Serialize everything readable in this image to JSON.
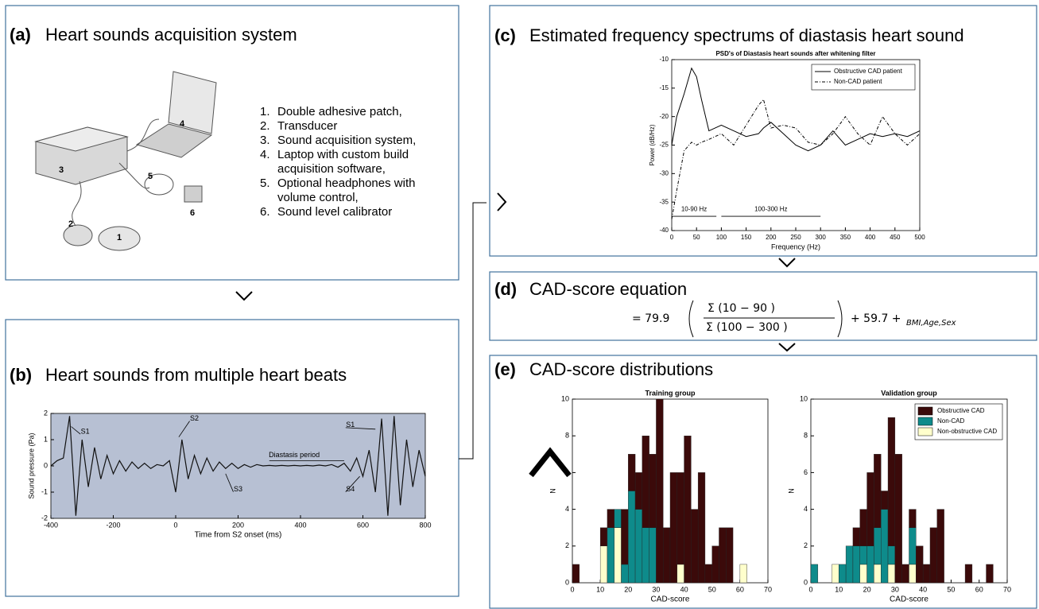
{
  "panels": {
    "a": {
      "label": "(a)",
      "title": "Heart sounds acquisition system",
      "items": [
        {
          "number": "1.",
          "text": "Double adhesive patch,"
        },
        {
          "number": "2.",
          "text": "Transducer"
        },
        {
          "number": "3.",
          "text": "Sound acquisition system,"
        },
        {
          "number": "4.",
          "text": "Laptop with custom build acquisition software,"
        },
        {
          "number": "5.",
          "text": "Optional headphones with volume control,"
        },
        {
          "number": "6.",
          "text": "Sound level calibrator"
        }
      ],
      "callouts": [
        "1",
        "2",
        "3",
        "4",
        "5",
        "6"
      ]
    },
    "b": {
      "label": "(b)",
      "title": "Heart sounds from multiple heart beats"
    },
    "c": {
      "label": "(c)",
      "title": "Estimated frequency spectrums of diastasis heart sound"
    },
    "d": {
      "label": "(d)",
      "title": "CAD-score equation",
      "equation": {
        "lhs": "= 79.9",
        "numerator": "Σ       (10 − 90     )",
        "denominator": "Σ      (100 − 300      )",
        "rhs": "+  59.7 +",
        "subscript": "BMI,Age,Sex"
      }
    },
    "e": {
      "label": "(e)",
      "title": "CAD-score distributions"
    }
  },
  "chart_data": [
    {
      "type": "line",
      "xlabel": "Time from S2 onset (ms)",
      "ylabel": "Sound pressure (Pa)",
      "background": "#b7c0d3",
      "x": [
        -400,
        -380,
        -360,
        -340,
        -320,
        -300,
        -280,
        -260,
        -240,
        -220,
        -200,
        -180,
        -160,
        -140,
        -120,
        -100,
        -80,
        -60,
        -40,
        -20,
        0,
        20,
        40,
        60,
        80,
        100,
        120,
        140,
        160,
        180,
        200,
        220,
        240,
        260,
        280,
        300,
        320,
        340,
        360,
        380,
        400,
        420,
        440,
        460,
        480,
        500,
        520,
        540,
        560,
        580,
        600,
        620,
        640,
        660,
        680,
        700,
        720,
        740,
        760,
        780,
        800
      ],
      "series": [
        {
          "color": "#111111",
          "values": [
            0,
            0.2,
            0.3,
            1.9,
            -1.9,
            1.0,
            -0.8,
            0.7,
            -0.5,
            0.4,
            -0.3,
            0.2,
            -0.2,
            0.15,
            -0.1,
            0.1,
            -0.1,
            0.05,
            0,
            0.2,
            -1.0,
            1.0,
            -0.5,
            0.4,
            -0.3,
            0.3,
            -0.2,
            0.15,
            -0.1,
            0.1,
            -0.1,
            0.05,
            -0.05,
            0.05,
            0,
            0.02,
            0,
            0.02,
            0,
            0.02,
            0,
            0.02,
            0,
            0.03,
            0,
            0.05,
            -0.05,
            0.1,
            -0.2,
            0.3,
            -0.4,
            0.6,
            -1.0,
            1.8,
            -1.9,
            1.9,
            -1.5,
            1.0,
            -0.8,
            0.6,
            -0.4
          ]
        }
      ],
      "xlim": [
        -400,
        800
      ],
      "xticks": [
        -400,
        -200,
        0,
        200,
        400,
        600,
        800
      ],
      "ylim": [
        -2,
        2
      ],
      "yticks": [
        -2,
        -1,
        0,
        1,
        2
      ],
      "annotations": [
        "S1",
        "S2",
        "S3",
        "Diastasis period",
        "S4",
        "S1"
      ]
    },
    {
      "type": "line",
      "title": "PSD's of Diastasis heart sounds after whitening filter",
      "xlabel": "Frequency (Hz)",
      "ylabel": "Power (dB/Hz)",
      "legend": "upper right",
      "x": [
        0,
        10,
        25,
        40,
        50,
        60,
        75,
        100,
        125,
        150,
        175,
        185,
        200,
        225,
        250,
        275,
        300,
        325,
        350,
        375,
        400,
        425,
        450,
        475,
        500
      ],
      "series": [
        {
          "name": "Obstructive CAD patient",
          "color": "#000000",
          "style": "solid",
          "values": [
            -25,
            -20,
            -16,
            -11.5,
            -13,
            -17,
            -22.5,
            -21.5,
            -22.5,
            -23.5,
            -23,
            -22,
            -21,
            -23,
            -25,
            -26,
            -25,
            -22.5,
            -25,
            -24,
            -23,
            -23.5,
            -23,
            -23.5,
            -22.5
          ]
        },
        {
          "name": "Non-CAD patient",
          "color": "#000000",
          "style": "dashdot",
          "values": [
            -38,
            -33,
            -26,
            -24.5,
            -25,
            -24.5,
            -24,
            -23,
            -25,
            -21.5,
            -18,
            -17,
            -22,
            -21.5,
            -22,
            -24.5,
            -25,
            -23,
            -20,
            -23,
            -25,
            -20,
            -23,
            -25,
            -23
          ]
        }
      ],
      "xlim": [
        0,
        500
      ],
      "xticks": [
        0,
        50,
        100,
        150,
        200,
        250,
        300,
        350,
        400,
        450,
        500
      ],
      "ylim": [
        -40,
        -10
      ],
      "yticks": [
        -40,
        -35,
        -30,
        -25,
        -20,
        -15,
        -10
      ],
      "annotations": [
        "10-90 Hz",
        "100-300 Hz"
      ]
    },
    {
      "type": "histogram",
      "title": "Training group",
      "xlabel": "CAD-score",
      "ylabel": "N",
      "bins": [
        0,
        2.5,
        5,
        7.5,
        10,
        12.5,
        15,
        17.5,
        20,
        22.5,
        25,
        27.5,
        30,
        32.5,
        35,
        37.5,
        40,
        42.5,
        45,
        47.5,
        50,
        52.5,
        55,
        57.5,
        60,
        62.5,
        65,
        67.5,
        70
      ],
      "series": [
        {
          "color": "#3b0a0a",
          "values": [
            1,
            0,
            0,
            0,
            1,
            1,
            0,
            3,
            2,
            2,
            5,
            4,
            10,
            3,
            6,
            5,
            8,
            4,
            6,
            1,
            2,
            3,
            3,
            0,
            0,
            0,
            0,
            0
          ]
        },
        {
          "color": "#0e8b8b",
          "values": [
            0,
            0,
            0,
            0,
            0,
            3,
            1,
            1,
            5,
            4,
            3,
            3,
            0,
            0,
            0,
            0,
            0,
            0,
            0,
            0,
            0,
            0,
            0,
            0,
            0,
            0,
            0,
            0
          ]
        },
        {
          "color": "#ffffcc",
          "values": [
            0,
            0,
            0,
            0,
            2,
            0,
            3,
            0,
            0,
            0,
            0,
            0,
            0,
            0,
            0,
            1,
            0,
            0,
            0,
            0,
            0,
            0,
            0,
            0,
            1,
            0,
            0,
            0
          ]
        }
      ],
      "xlim": [
        0,
        70
      ],
      "xticks": [
        0,
        10,
        20,
        30,
        40,
        50,
        60,
        70
      ],
      "ylim": [
        0,
        10
      ],
      "yticks": [
        0,
        2,
        4,
        6,
        8,
        10
      ]
    },
    {
      "type": "histogram",
      "title": "Validation group",
      "xlabel": "CAD-score",
      "ylabel": "N",
      "legend": "upper right",
      "bins": [
        0,
        2.5,
        5,
        7.5,
        10,
        12.5,
        15,
        17.5,
        20,
        22.5,
        25,
        27.5,
        30,
        32.5,
        35,
        37.5,
        40,
        42.5,
        45,
        47.5,
        50,
        52.5,
        55,
        57.5,
        60,
        62.5,
        65,
        67.5,
        70
      ],
      "series": [
        {
          "name": "Obstructive CAD",
          "color": "#3b0a0a",
          "values": [
            0,
            0,
            0,
            0,
            0,
            0,
            1,
            2,
            4,
            4,
            1,
            7,
            7,
            1,
            1,
            2,
            1,
            3,
            4,
            0,
            0,
            0,
            1,
            0,
            0,
            1,
            0,
            0
          ]
        },
        {
          "name": "Non-CAD",
          "color": "#0e8b8b",
          "values": [
            1,
            0,
            0,
            0,
            1,
            2,
            2,
            1,
            2,
            2,
            4,
            1,
            0,
            0,
            2,
            0,
            0,
            0,
            0,
            0,
            0,
            0,
            0,
            0,
            0,
            0,
            0,
            0
          ]
        },
        {
          "name": "Non-obstructive CAD",
          "color": "#ffffcc",
          "values": [
            0,
            0,
            0,
            1,
            0,
            0,
            0,
            1,
            0,
            1,
            0,
            1,
            0,
            0,
            1,
            0,
            0,
            0,
            0,
            0,
            0,
            0,
            0,
            0,
            0,
            0,
            0,
            0
          ]
        }
      ],
      "xlim": [
        0,
        70
      ],
      "xticks": [
        0,
        10,
        20,
        30,
        40,
        50,
        60,
        70
      ],
      "ylim": [
        0,
        10
      ],
      "yticks": [
        0,
        2,
        4,
        6,
        8,
        10
      ]
    }
  ]
}
